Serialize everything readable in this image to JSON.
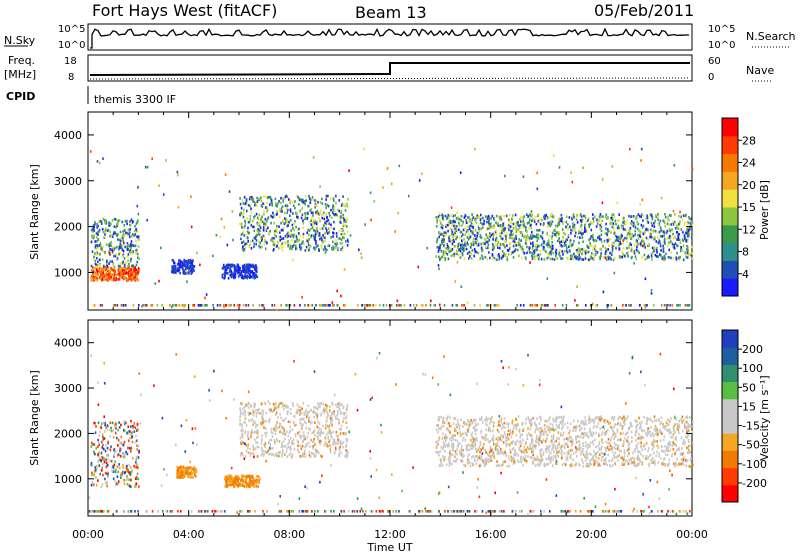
{
  "header": {
    "station": "Fort Hays West (fitACF)",
    "beam": "Beam 13",
    "date": "05/Feb/2011"
  },
  "top_panels": {
    "left_labels": {
      "nsky": "N.Sky",
      "freq_line1": "Freq.",
      "freq_line2": "[MHz]",
      "cpid": "CPID"
    },
    "right_labels": {
      "nsearch": "N.Search",
      "nave": "Nave"
    },
    "noise_ticks_left": [
      "10^5",
      "10^0"
    ],
    "noise_ticks_right": [
      "10^5",
      "10^0"
    ],
    "freq_ticks": [
      "18",
      "8"
    ],
    "nave_ticks": [
      "60",
      "0"
    ],
    "cpid_text": "themis 3300 IF"
  },
  "chart_data": [
    {
      "type": "heatmap",
      "name": "Power",
      "ylabel": "Slant Range [km]",
      "xlabel": "",
      "ylim": [
        180,
        4500
      ],
      "yticks": [
        "1000",
        "2000",
        "3000",
        "4000"
      ],
      "xlim": [
        0,
        24
      ],
      "colorbar": {
        "label": "Power [dB]",
        "ticks": [
          "4",
          "8",
          "12",
          "15",
          "20",
          "24",
          "28"
        ],
        "colors": [
          "#1a1aff",
          "#1f4fb5",
          "#2f8f8f",
          "#3a9a4a",
          "#8cc63f",
          "#f0e040",
          "#f5a623",
          "#f57a00",
          "#ff3b00",
          "#ff0000"
        ]
      },
      "bands": [
        {
          "t0": 0.1,
          "t1": 2.0,
          "r0": 850,
          "r1": 1150,
          "level": "high"
        },
        {
          "t0": 0.1,
          "t1": 2.0,
          "r0": 1150,
          "r1": 2200,
          "level": "mid"
        },
        {
          "t0": 3.3,
          "t1": 4.2,
          "r0": 1000,
          "r1": 1300,
          "level": "low"
        },
        {
          "t0": 5.3,
          "t1": 6.7,
          "r0": 900,
          "r1": 1200,
          "level": "low"
        },
        {
          "t0": 6.0,
          "t1": 10.3,
          "r0": 1500,
          "r1": 2700,
          "level": "mid"
        },
        {
          "t0": 13.8,
          "t1": 24.0,
          "r0": 1300,
          "r1": 2300,
          "level": "mid"
        }
      ]
    },
    {
      "type": "heatmap",
      "name": "Velocity",
      "ylabel": "Slant Range [km]",
      "xlabel": "Time UT",
      "ylim": [
        180,
        4500
      ],
      "yticks": [
        "1000",
        "2000",
        "3000",
        "4000"
      ],
      "xticks": [
        "00:00",
        "04:00",
        "08:00",
        "12:00",
        "16:00",
        "20:00",
        "00:00"
      ],
      "xlim": [
        0,
        24
      ],
      "colorbar": {
        "label": "Velocity [m s⁻¹]",
        "ticks": [
          "200",
          "100",
          "50",
          "15",
          "-15",
          "-50",
          "-100",
          "-200"
        ],
        "colors": [
          "#1f3fbf",
          "#1f5fa0",
          "#2f8f6f",
          "#58c040",
          "#c8c8c8",
          "#c8c8c8",
          "#f5a623",
          "#f57a00",
          "#ff3b00",
          "#ff0000"
        ]
      },
      "bands": [
        {
          "t0": 0.1,
          "t1": 2.0,
          "r0": 850,
          "r1": 2300,
          "level": "mixed"
        },
        {
          "t0": 3.5,
          "t1": 4.3,
          "r0": 1050,
          "r1": 1300,
          "level": "orange"
        },
        {
          "t0": 5.4,
          "t1": 6.8,
          "r0": 850,
          "r1": 1100,
          "level": "orange"
        },
        {
          "t0": 6.0,
          "t1": 10.3,
          "r0": 1500,
          "r1": 2700,
          "level": "grey"
        },
        {
          "t0": 13.8,
          "t1": 24.0,
          "r0": 1300,
          "r1": 2400,
          "level": "grey"
        }
      ]
    }
  ]
}
